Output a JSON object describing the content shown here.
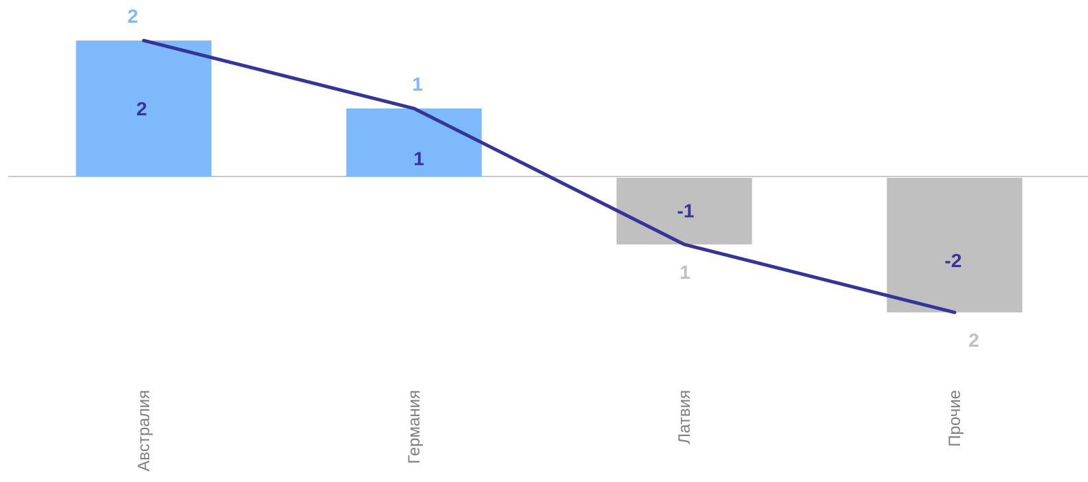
{
  "chart_data": {
    "type": "bar",
    "categories": [
      "Австралия",
      "Германия",
      "Латвия",
      "Прочие"
    ],
    "series": [
      {
        "type": "bar",
        "values": [
          2,
          1,
          -1,
          -2
        ],
        "value_labels": [
          "2",
          "1",
          "-1",
          "-2"
        ]
      },
      {
        "type": "line",
        "values": [
          2,
          1,
          -1,
          -2
        ]
      }
    ],
    "outer_labels": [
      "2",
      "1",
      "1",
      "2"
    ],
    "ylim": [
      -2.5,
      2.5
    ],
    "grid": false,
    "legend": "none",
    "title": "",
    "xlabel": "",
    "ylabel": ""
  },
  "colors": {
    "positive_bar": "#7eb9fb",
    "negative_bar": "#c0c0c0",
    "line": "#35349a",
    "bar_label": "#35349a",
    "outer_positive": "#7eb9fb",
    "outer_negative": "#c0c0c0",
    "category_label": "#808080",
    "zero_line": "#c8c8c8"
  }
}
